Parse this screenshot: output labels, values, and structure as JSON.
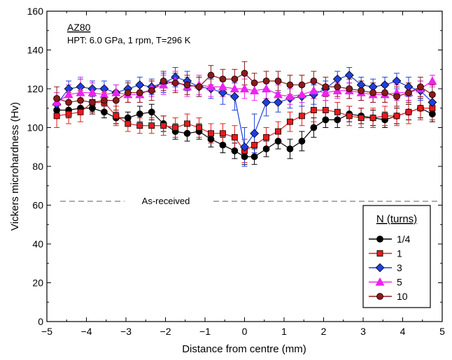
{
  "chart_data": {
    "type": "scatter",
    "xlabel": "Distance from centre (mm)",
    "ylabel": "Vickers microhardness (Hv)",
    "xlim": [
      -5,
      5
    ],
    "ylim": [
      0,
      160
    ],
    "xticks": [
      -5,
      -4,
      -3,
      -2,
      -1,
      0,
      1,
      2,
      3,
      4,
      5
    ],
    "yticks": [
      0,
      20,
      40,
      60,
      80,
      100,
      120,
      140,
      160
    ],
    "xtick_labels": [
      "−5",
      "−4",
      "−3",
      "−2",
      "−1",
      "0",
      "1",
      "2",
      "3",
      "4",
      "5"
    ],
    "ytick_labels": [
      "0",
      "20",
      "40",
      "60",
      "80",
      "100",
      "120",
      "140",
      "160"
    ],
    "annotations": {
      "material": "AZ80",
      "conditions": "HPT: 6.0 GPa, 1 rpm, T=296 K",
      "reference": "As-received"
    },
    "reference_line": {
      "y": 62,
      "label": "As-received",
      "style": "dashed",
      "color": "#888888"
    },
    "legend": {
      "title": "N (turns)",
      "placement": "bottom-right"
    },
    "x": [
      -4.75,
      -4.45,
      -4.15,
      -3.85,
      -3.55,
      -3.25,
      -2.95,
      -2.65,
      -2.35,
      -2.05,
      -1.75,
      -1.45,
      -1.15,
      -0.85,
      -0.55,
      -0.25,
      0.0,
      0.25,
      0.55,
      0.85,
      1.15,
      1.45,
      1.75,
      2.05,
      2.35,
      2.65,
      2.95,
      3.25,
      3.55,
      3.85,
      4.15,
      4.45,
      4.75
    ],
    "series": [
      {
        "name": "1/4",
        "color": "#000000",
        "marker": "circle",
        "values": [
          109,
          109,
          110,
          110,
          108,
          105,
          105,
          107,
          108,
          102,
          98,
          97,
          98,
          94,
          91,
          88,
          85,
          85,
          89,
          93,
          89,
          93,
          100,
          104,
          104,
          107,
          106,
          105,
          104,
          106,
          108,
          110,
          107
        ],
        "errors": [
          4,
          4,
          3,
          3,
          3,
          3,
          3,
          4,
          4,
          4,
          4,
          4,
          4,
          4,
          4,
          4,
          4,
          4,
          4,
          4,
          5,
          5,
          5,
          4,
          4,
          4,
          4,
          4,
          4,
          4,
          4,
          5,
          4
        ]
      },
      {
        "name": "1",
        "color": "#e8191c",
        "marker": "square",
        "values": [
          106,
          107,
          108,
          113,
          113,
          106,
          102,
          101,
          101,
          101,
          100,
          102,
          100,
          97,
          97,
          95,
          88,
          91,
          95,
          98,
          103,
          106,
          109,
          109,
          108,
          106,
          105,
          105,
          106,
          106,
          108,
          110,
          110
        ],
        "errors": [
          6,
          5,
          5,
          5,
          5,
          5,
          4,
          4,
          4,
          5,
          5,
          5,
          5,
          5,
          5,
          6,
          6,
          6,
          5,
          5,
          5,
          5,
          6,
          5,
          5,
          5,
          5,
          5,
          5,
          5,
          6,
          6,
          6
        ]
      },
      {
        "name": "3",
        "color": "#1f3fe0",
        "marker": "diamond",
        "values": [
          112,
          120,
          121,
          120,
          120,
          118,
          120,
          122,
          121,
          123,
          126,
          124,
          121,
          120,
          118,
          116,
          90,
          97,
          113,
          113,
          115,
          116,
          117,
          120,
          125,
          127,
          122,
          121,
          122,
          124,
          121,
          119,
          113
        ],
        "errors": [
          4,
          4,
          4,
          4,
          4,
          4,
          4,
          4,
          4,
          5,
          5,
          5,
          5,
          5,
          6,
          7,
          10,
          10,
          7,
          5,
          5,
          5,
          5,
          4,
          4,
          4,
          4,
          4,
          4,
          4,
          5,
          5,
          5
        ]
      },
      {
        "name": "5",
        "color": "#ee22ee",
        "marker": "triangle",
        "values": [
          113,
          117,
          118,
          118,
          117,
          118,
          117,
          117,
          120,
          122,
          124,
          121,
          122,
          121,
          121,
          120,
          120,
          119,
          120,
          117,
          116,
          117,
          119,
          118,
          119,
          119,
          118,
          117,
          117,
          118,
          118,
          120,
          124
        ],
        "errors": [
          5,
          5,
          8,
          5,
          4,
          4,
          4,
          4,
          4,
          5,
          5,
          5,
          5,
          5,
          5,
          5,
          5,
          5,
          5,
          5,
          4,
          4,
          4,
          4,
          4,
          4,
          4,
          4,
          4,
          4,
          4,
          4,
          3
        ]
      },
      {
        "name": "10",
        "color": "#8b1a1a",
        "marker": "circle",
        "values": [
          115,
          113,
          114,
          113,
          114,
          114,
          118,
          118,
          119,
          124,
          123,
          122,
          121,
          127,
          125,
          125,
          128,
          123,
          124,
          124,
          122,
          122,
          124,
          121,
          121,
          120,
          119,
          118,
          118,
          116,
          118,
          121,
          117
        ],
        "errors": [
          6,
          5,
          5,
          5,
          5,
          5,
          5,
          5,
          5,
          5,
          5,
          5,
          5,
          5,
          5,
          5,
          6,
          5,
          5,
          5,
          5,
          5,
          5,
          5,
          5,
          5,
          5,
          5,
          5,
          5,
          5,
          5,
          5
        ]
      }
    ]
  }
}
